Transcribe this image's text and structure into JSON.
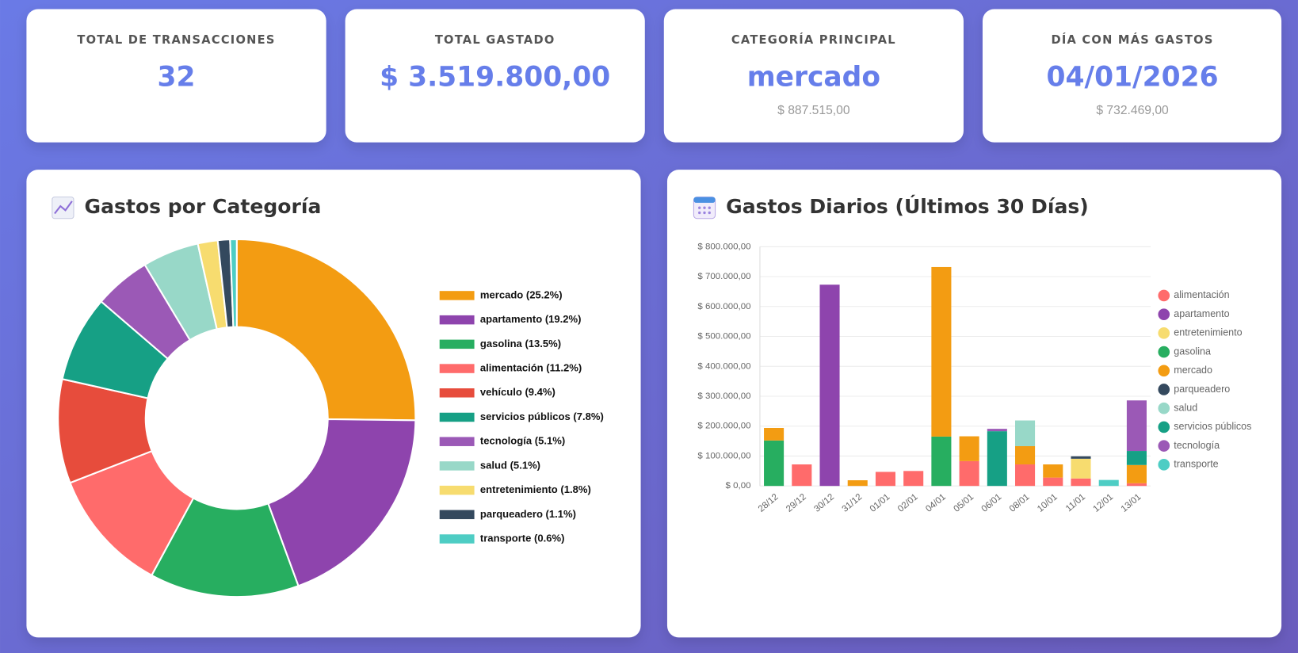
{
  "cards": [
    {
      "label": "TOTAL DE TRANSACCIONES",
      "value": "32"
    },
    {
      "label": "TOTAL GASTADO",
      "value": "$ 3.519.800,00"
    },
    {
      "label": "CATEGORÍA PRINCIPAL",
      "value": "mercado",
      "sub": "$ 887.515,00"
    },
    {
      "label": "DÍA CON MÁS GASTOS",
      "value": "04/01/2026",
      "sub": "$ 732.469,00"
    }
  ],
  "chart_data": [
    {
      "type": "pie",
      "title": "Gastos por Categoría",
      "donut": true,
      "labels": [
        "mercado (25.2%)",
        "apartamento (19.2%)",
        "gasolina (13.5%)",
        "alimentación (11.2%)",
        "vehículo (9.4%)",
        "servicios públicos (7.8%)",
        "tecnología (5.1%)",
        "salud (5.1%)",
        "entretenimiento (1.8%)",
        "parqueadero (1.1%)",
        "transporte (0.6%)"
      ],
      "values": [
        25.2,
        19.2,
        13.5,
        11.2,
        9.4,
        7.8,
        5.1,
        5.1,
        1.8,
        1.1,
        0.6
      ],
      "colors": [
        "#f39c12",
        "#8e44ad",
        "#27ae60",
        "#ff6b6b",
        "#e74c3c",
        "#16a085",
        "#9b59b6",
        "#98d8c8",
        "#f7dc6f",
        "#34495e",
        "#4ecdc4"
      ],
      "legend": "right"
    },
    {
      "type": "bar",
      "stacked": true,
      "title": "Gastos Diarios (Últimos 30 Días)",
      "categories": [
        "28/12",
        "29/12",
        "30/12",
        "31/12",
        "01/01",
        "02/01",
        "04/01",
        "05/01",
        "06/01",
        "08/01",
        "10/01",
        "11/01",
        "12/01",
        "13/01"
      ],
      "series": [
        {
          "name": "alimentación",
          "color": "#ff6b6b",
          "values": [
            null,
            72000,
            null,
            null,
            47000,
            50000,
            null,
            83000,
            null,
            72000,
            28000,
            25000,
            null,
            9000
          ]
        },
        {
          "name": "apartamento",
          "color": "#8e44ad",
          "values": [
            null,
            null,
            673000,
            null,
            null,
            null,
            null,
            null,
            null,
            null,
            null,
            null,
            null,
            null
          ]
        },
        {
          "name": "entretenimiento",
          "color": "#f7dc6f",
          "values": [
            null,
            null,
            null,
            null,
            null,
            null,
            null,
            null,
            null,
            null,
            null,
            66000,
            null,
            null
          ]
        },
        {
          "name": "gasolina",
          "color": "#27ae60",
          "values": [
            152000,
            null,
            null,
            null,
            null,
            null,
            165000,
            null,
            null,
            null,
            null,
            null,
            null,
            null
          ]
        },
        {
          "name": "mercado",
          "color": "#f39c12",
          "values": [
            42000,
            null,
            null,
            19000,
            null,
            null,
            567000,
            83000,
            null,
            61000,
            44000,
            null,
            null,
            61000
          ]
        },
        {
          "name": "parqueadero",
          "color": "#34495e",
          "values": [
            null,
            null,
            null,
            null,
            null,
            null,
            null,
            null,
            null,
            null,
            null,
            8000,
            null,
            null
          ]
        },
        {
          "name": "salud",
          "color": "#98d8c8",
          "values": [
            null,
            null,
            null,
            null,
            null,
            null,
            null,
            null,
            null,
            86000,
            null,
            null,
            null,
            null
          ]
        },
        {
          "name": "servicios públicos",
          "color": "#16a085",
          "values": [
            null,
            null,
            null,
            null,
            null,
            null,
            null,
            null,
            183000,
            null,
            null,
            null,
            null,
            47000
          ]
        },
        {
          "name": "tecnología",
          "color": "#9b59b6",
          "values": [
            null,
            null,
            null,
            null,
            null,
            null,
            null,
            null,
            8000,
            null,
            null,
            null,
            null,
            169000
          ]
        },
        {
          "name": "transporte",
          "color": "#4ecdc4",
          "values": [
            null,
            null,
            null,
            null,
            null,
            null,
            null,
            null,
            null,
            null,
            null,
            null,
            20000,
            null
          ]
        }
      ],
      "ylim": [
        0,
        800000
      ],
      "yticks": [
        {
          "value": 0,
          "label": "$ 0,00"
        },
        {
          "value": 100000,
          "label": "$ 100.000,00"
        },
        {
          "value": 200000,
          "label": "$ 200.000,00"
        },
        {
          "value": 300000,
          "label": "$ 300.000,00"
        },
        {
          "value": 400000,
          "label": "$ 400.000,00"
        },
        {
          "value": 500000,
          "label": "$ 500.000,00"
        },
        {
          "value": 600000,
          "label": "$ 600.000,00"
        },
        {
          "value": 700000,
          "label": "$ 700.000,00"
        },
        {
          "value": 800000,
          "label": "$ 800.000,00"
        }
      ],
      "grid": true,
      "legend": "right"
    }
  ]
}
